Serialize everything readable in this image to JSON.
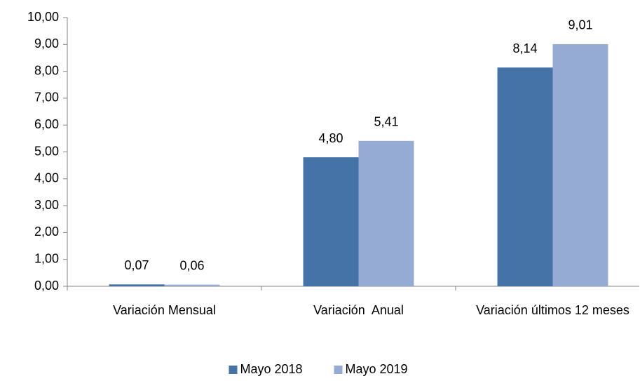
{
  "chart_data": {
    "type": "bar",
    "categories": [
      "Variación Mensual",
      "Variación  Anual",
      "Variación últimos 12 meses"
    ],
    "series": [
      {
        "name": "Mayo 2018",
        "color": "#4572a7",
        "values": [
          0.07,
          4.8,
          8.14
        ],
        "value_labels": [
          "0,07",
          "4,80",
          "8,14"
        ]
      },
      {
        "name": "Mayo 2019",
        "color": "#95abd3",
        "values": [
          0.06,
          5.41,
          9.01
        ],
        "value_labels": [
          "0,06",
          "5,41",
          "9,01"
        ]
      }
    ],
    "ylim": [
      0,
      10
    ],
    "yticks": [
      {
        "value": 0,
        "label": "0,00"
      },
      {
        "value": 1,
        "label": "1,00"
      },
      {
        "value": 2,
        "label": "2,00"
      },
      {
        "value": 3,
        "label": "3,00"
      },
      {
        "value": 4,
        "label": "4,00"
      },
      {
        "value": 5,
        "label": "5,00"
      },
      {
        "value": 6,
        "label": "6,00"
      },
      {
        "value": 7,
        "label": "7,00"
      },
      {
        "value": 8,
        "label": "8,00"
      },
      {
        "value": 9,
        "label": "9,00"
      },
      {
        "value": 10,
        "label": "10,00"
      }
    ],
    "grid": false,
    "legend": "bottom"
  }
}
